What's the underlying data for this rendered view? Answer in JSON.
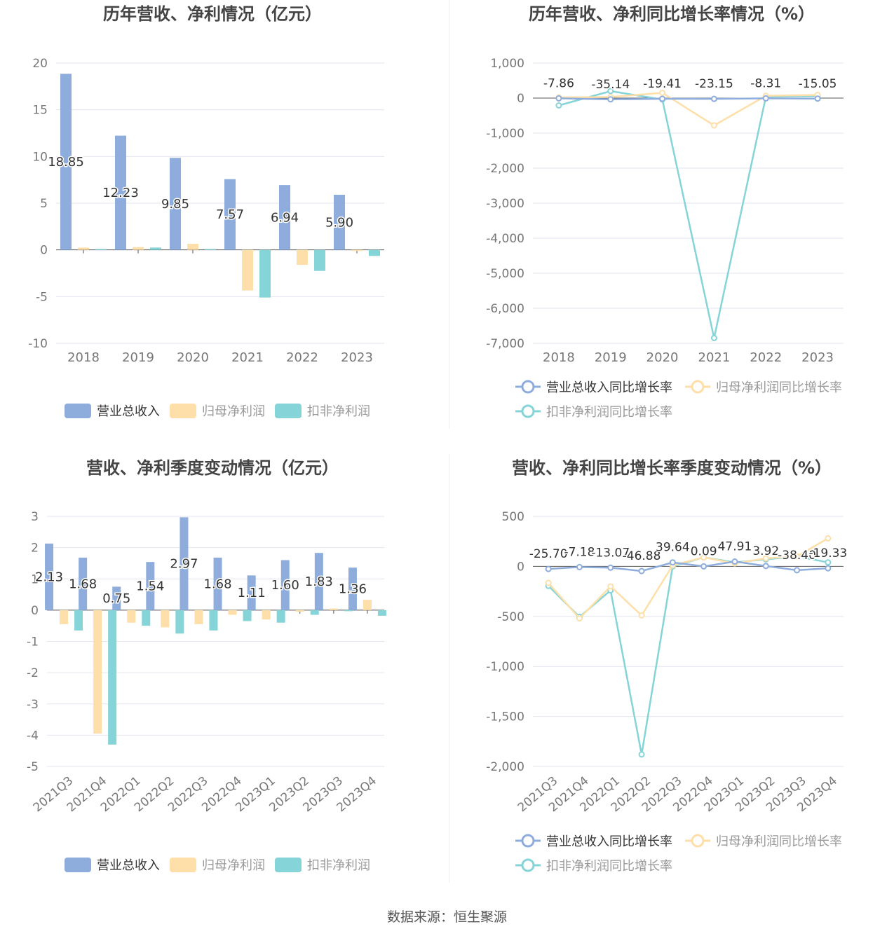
{
  "source_text": "数据来源：恒生聚源",
  "colors": {
    "revenue": "#8eaddc",
    "net_profit": "#fedfa9",
    "deducted_profit": "#85d4d8",
    "axis": "#333333",
    "grid": "#e3e6ef",
    "tick": "#777777",
    "title": "#444444"
  },
  "chart_data": [
    {
      "type": "bar",
      "title": "历年营收、净利情况（亿元）",
      "categories": [
        "2018",
        "2019",
        "2020",
        "2021",
        "2022",
        "2023"
      ],
      "ylim": [
        -10,
        20
      ],
      "yticks": [
        20,
        15,
        10,
        5,
        0,
        -5,
        -10
      ],
      "ytick_labels": [
        "20",
        "15",
        "10",
        "5",
        "0",
        "-5",
        "-10"
      ],
      "legend_position": "bottom",
      "grid": true,
      "series": [
        {
          "name": "营业总收入",
          "values": [
            18.85,
            12.23,
            9.85,
            7.57,
            6.94,
            5.9
          ],
          "labels": [
            "18.85",
            "12.23",
            "9.85",
            "7.57",
            "6.94",
            "5.90"
          ]
        },
        {
          "name": "归母净利润",
          "values": [
            0.25,
            0.3,
            0.65,
            -4.35,
            -1.6,
            0.0
          ]
        },
        {
          "name": "扣非净利润",
          "values": [
            0.1,
            0.25,
            0.1,
            -5.1,
            -2.25,
            -0.65
          ]
        }
      ]
    },
    {
      "type": "line",
      "title": "历年营收、净利同比增长率情况（%）",
      "categories": [
        "2018",
        "2019",
        "2020",
        "2021",
        "2022",
        "2023"
      ],
      "ylim": [
        -7000,
        1000
      ],
      "yticks": [
        1000,
        0,
        -1000,
        -2000,
        -3000,
        -4000,
        -5000,
        -6000,
        -7000
      ],
      "ytick_labels": [
        "1,000",
        "0",
        "-1,000",
        "-2,000",
        "-3,000",
        "-4,000",
        "-5,000",
        "-6,000",
        "-7,000"
      ],
      "legend_position": "bottom",
      "grid": true,
      "series": [
        {
          "name": "营业总收入同比增长率",
          "values": [
            -7.86,
            -35.14,
            -19.41,
            -23.15,
            -8.31,
            -15.05
          ],
          "labels": [
            "-7.86",
            "-35.14",
            "-19.41",
            "-23.15",
            "-8.31",
            "-15.05"
          ]
        },
        {
          "name": "归母净利润同比增长率",
          "values": [
            20,
            30,
            150,
            -780,
            65,
            90
          ]
        },
        {
          "name": "扣非净利润同比增长率",
          "values": [
            -210,
            200,
            -40,
            -6850,
            40,
            60
          ]
        }
      ]
    },
    {
      "type": "bar",
      "title": "营收、净利季度变动情况（亿元）",
      "categories": [
        "2021Q3",
        "2021Q4",
        "2022Q1",
        "2022Q2",
        "2022Q3",
        "2022Q4",
        "2023Q1",
        "2023Q2",
        "2023Q3",
        "2023Q4"
      ],
      "ylim": [
        -5,
        3
      ],
      "yticks": [
        3,
        2,
        1,
        0,
        -1,
        -2,
        -3,
        -4,
        -5
      ],
      "ytick_labels": [
        "3",
        "2",
        "1",
        "0",
        "-1",
        "-2",
        "-3",
        "-4",
        "-5"
      ],
      "legend_position": "bottom",
      "grid": true,
      "series": [
        {
          "name": "营业总收入",
          "values": [
            2.13,
            1.68,
            0.75,
            1.54,
            2.97,
            1.68,
            1.11,
            1.6,
            1.83,
            1.36
          ],
          "labels": [
            "2.13",
            "1.68",
            "0.75",
            "1.54",
            "2.97",
            "1.68",
            "1.11",
            "1.60",
            "1.83",
            "1.36"
          ]
        },
        {
          "name": "归母净利润",
          "values": [
            -0.45,
            -3.95,
            -0.4,
            -0.55,
            -0.45,
            -0.15,
            -0.3,
            -0.05,
            0.05,
            0.33
          ]
        },
        {
          "name": "扣非净利润",
          "values": [
            -0.65,
            -4.3,
            -0.5,
            -0.75,
            -0.65,
            -0.35,
            -0.4,
            -0.15,
            0.0,
            -0.18
          ]
        }
      ]
    },
    {
      "type": "line",
      "title": "营收、净利同比增长率季度变动情况（%）",
      "categories": [
        "2021Q3",
        "2021Q4",
        "2022Q1",
        "2022Q2",
        "2022Q3",
        "2022Q4",
        "2023Q1",
        "2023Q2",
        "2023Q3",
        "2023Q4"
      ],
      "ylim": [
        -2000,
        500
      ],
      "yticks": [
        500,
        0,
        -500,
        -1000,
        -1500,
        -2000
      ],
      "ytick_labels": [
        "500",
        "0",
        "-500",
        "-1,000",
        "-1,500",
        "-2,000"
      ],
      "legend_position": "bottom",
      "grid": true,
      "series": [
        {
          "name": "营业总收入同比增长率",
          "values": [
            -25.7,
            -7.18,
            -13.07,
            -46.88,
            39.64,
            0.09,
            47.91,
            3.92,
            -38.4,
            -19.33
          ],
          "labels": [
            "-25.70",
            "-7.18",
            "-13.07",
            "-46.88",
            "39.64",
            "0.09",
            "47.91",
            "3.92",
            "-38.40",
            "-19.33"
          ]
        },
        {
          "name": "归母净利润同比增长率",
          "values": [
            -165,
            -520,
            -200,
            -490,
            10,
            90,
            30,
            80,
            100,
            280
          ]
        },
        {
          "name": "扣非净利润同比增长率",
          "values": [
            -195,
            -505,
            -240,
            -1880,
            0,
            90,
            40,
            70,
            100,
            40
          ]
        }
      ]
    }
  ]
}
